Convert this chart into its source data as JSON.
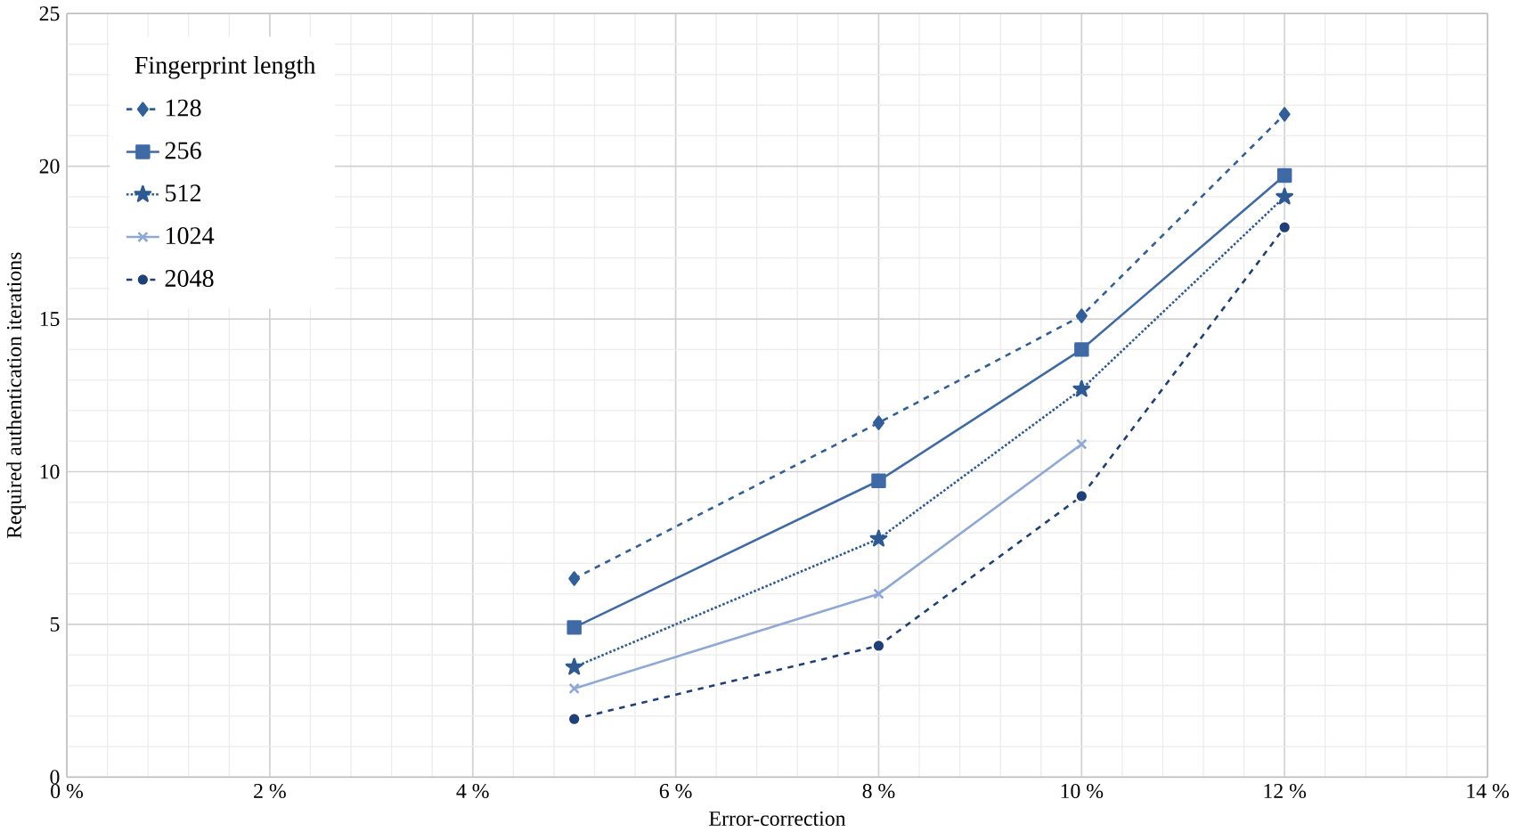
{
  "chart_data": {
    "type": "line",
    "xlabel": "Error-correction",
    "ylabel": "Required authentication iterations",
    "legend_title": "Fingerprint length",
    "x": [
      5,
      8,
      10,
      12
    ],
    "series": [
      {
        "name": "128",
        "color": "#305f99",
        "marker": "diamond",
        "line_style": "dashed",
        "values": [
          6.5,
          11.6,
          15.1,
          21.7
        ]
      },
      {
        "name": "256",
        "color": "#3f6aa6",
        "marker": "square",
        "line_style": "solid",
        "values": [
          4.9,
          9.7,
          14.0,
          19.7
        ]
      },
      {
        "name": "512",
        "color": "#2e5a94",
        "marker": "star",
        "line_style": "dotted",
        "values": [
          3.6,
          7.8,
          12.7,
          19.0
        ]
      },
      {
        "name": "1024",
        "color": "#8ea9d6",
        "marker": "cross",
        "line_style": "solid",
        "values": [
          2.9,
          6.0,
          10.9,
          null
        ]
      },
      {
        "name": "2048",
        "color": "#1f3f78",
        "marker": "circle",
        "line_style": "dashed",
        "values": [
          1.9,
          4.3,
          9.2,
          18.0
        ]
      }
    ],
    "xlim": [
      0,
      14
    ],
    "ylim": [
      0,
      25
    ],
    "xticks": [
      {
        "value": 0,
        "label": "0 %"
      },
      {
        "value": 2,
        "label": "2 %"
      },
      {
        "value": 4,
        "label": "4 %"
      },
      {
        "value": 6,
        "label": "6 %"
      },
      {
        "value": 8,
        "label": "8 %"
      },
      {
        "value": 10,
        "label": "10 %"
      },
      {
        "value": 12,
        "label": "12 %"
      },
      {
        "value": 14,
        "label": "14 %"
      }
    ],
    "yticks": [
      0,
      5,
      10,
      15,
      20,
      25
    ],
    "grid": true,
    "legend": "top left"
  }
}
